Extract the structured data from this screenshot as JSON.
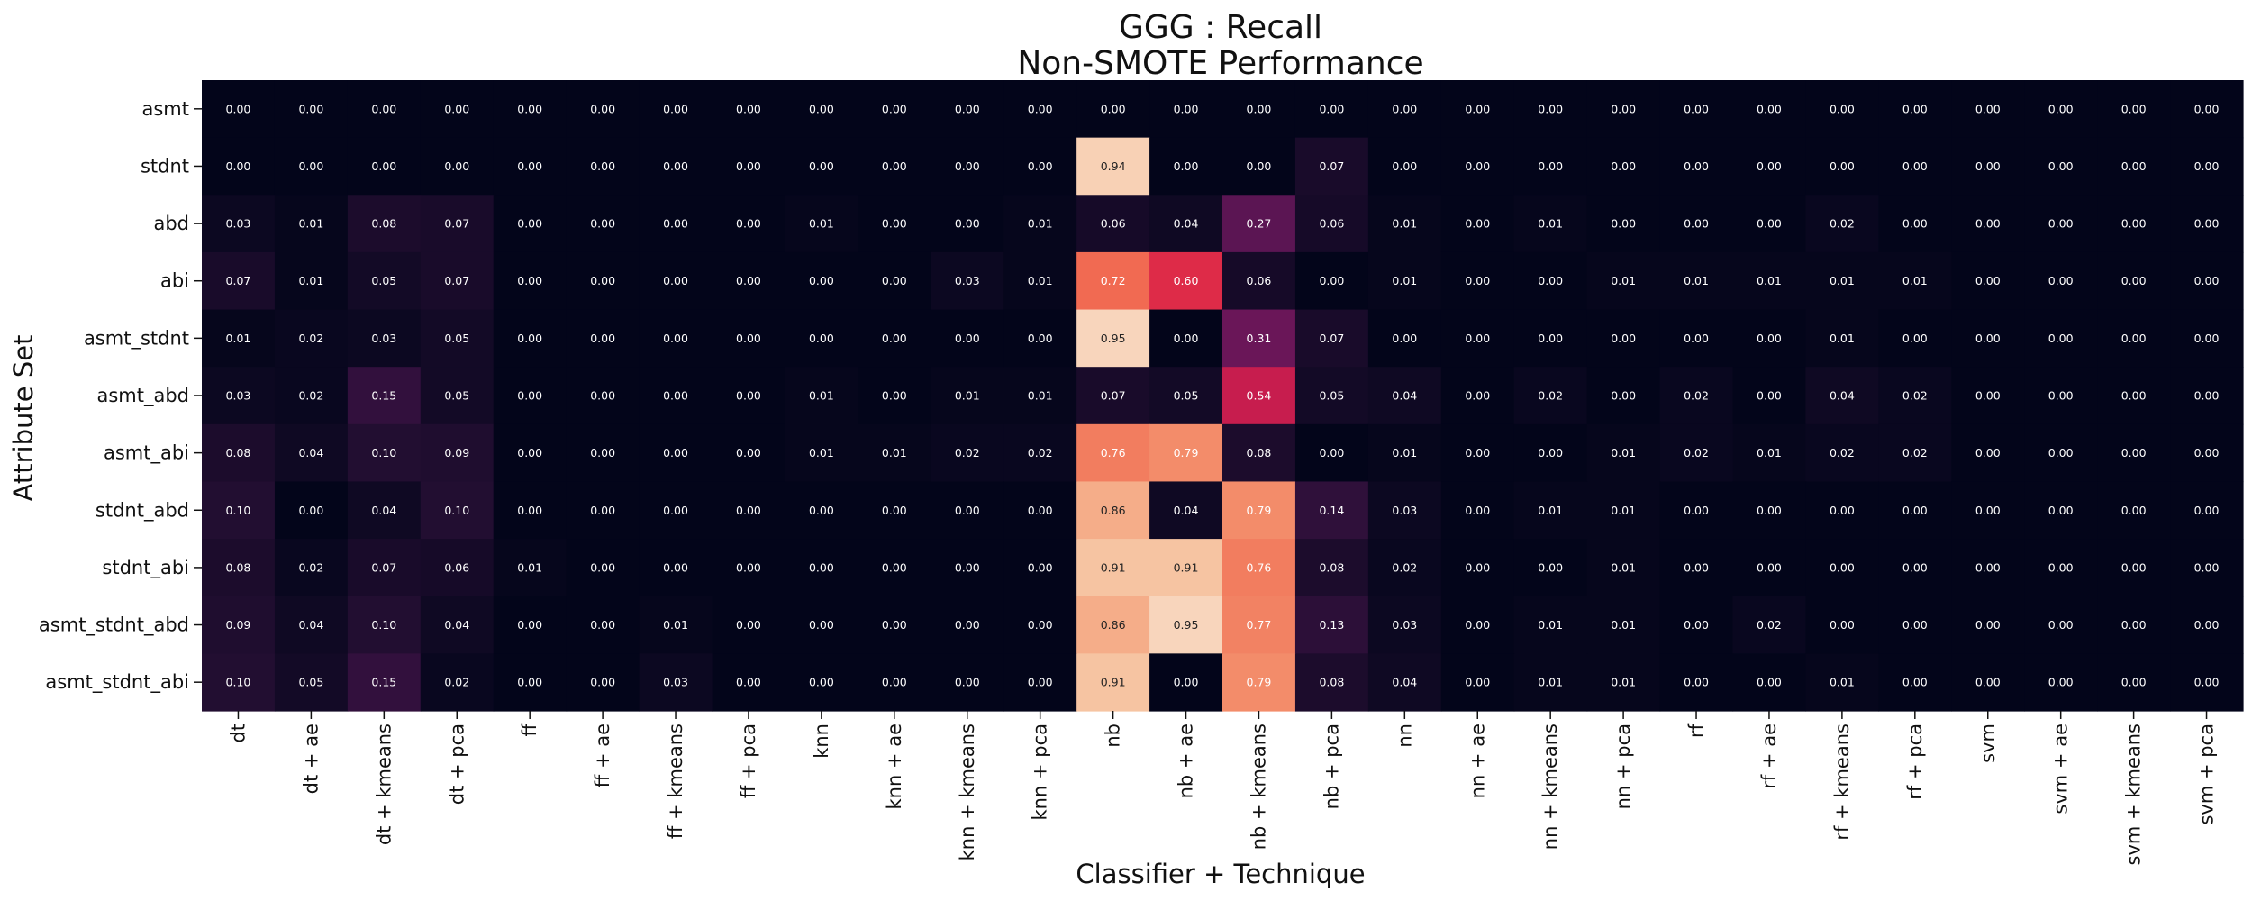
{
  "chart_data": {
    "type": "heatmap",
    "title": "GGG : Recall",
    "subtitle": "Non-SMOTE Performance",
    "xlabel": "Classifier + Technique",
    "ylabel": "Attribute Set",
    "color_scale": "rocket",
    "value_range": [
      0,
      1
    ],
    "x": [
      "dt",
      "dt + ae",
      "dt + kmeans",
      "dt + pca",
      "ff",
      "ff + ae",
      "ff + kmeans",
      "ff + pca",
      "knn",
      "knn + ae",
      "knn + kmeans",
      "knn + pca",
      "nb",
      "nb + ae",
      "nb + kmeans",
      "nb + pca",
      "nn",
      "nn + ae",
      "nn + kmeans",
      "nn + pca",
      "rf",
      "rf + ae",
      "rf + kmeans",
      "rf + pca",
      "svm",
      "svm + ae",
      "svm + kmeans",
      "svm + pca"
    ],
    "y": [
      "asmt",
      "stdnt",
      "abd",
      "abi",
      "asmt_stdnt",
      "asmt_abd",
      "asmt_abi",
      "stdnt_abd",
      "stdnt_abi",
      "asmt_stdnt_abd",
      "asmt_stdnt_abi"
    ],
    "values": [
      [
        0.0,
        0.0,
        0.0,
        0.0,
        0.0,
        0.0,
        0.0,
        0.0,
        0.0,
        0.0,
        0.0,
        0.0,
        0.0,
        0.0,
        0.0,
        0.0,
        0.0,
        0.0,
        0.0,
        0.0,
        0.0,
        0.0,
        0.0,
        0.0,
        0.0,
        0.0,
        0.0,
        0.0
      ],
      [
        0.0,
        0.0,
        0.0,
        0.0,
        0.0,
        0.0,
        0.0,
        0.0,
        0.0,
        0.0,
        0.0,
        0.0,
        0.94,
        0.0,
        0.0,
        0.07,
        0.0,
        0.0,
        0.0,
        0.0,
        0.0,
        0.0,
        0.0,
        0.0,
        0.0,
        0.0,
        0.0,
        0.0
      ],
      [
        0.03,
        0.01,
        0.08,
        0.07,
        0.0,
        0.0,
        0.0,
        0.0,
        0.01,
        0.0,
        0.0,
        0.01,
        0.06,
        0.04,
        0.27,
        0.06,
        0.01,
        0.0,
        0.01,
        0.0,
        0.0,
        0.0,
        0.02,
        0.0,
        0.0,
        0.0,
        0.0,
        0.0
      ],
      [
        0.07,
        0.01,
        0.05,
        0.07,
        0.0,
        0.0,
        0.0,
        0.0,
        0.0,
        0.0,
        0.03,
        0.01,
        0.72,
        0.6,
        0.06,
        0.0,
        0.01,
        0.0,
        0.0,
        0.01,
        0.01,
        0.01,
        0.01,
        0.01,
        0.0,
        0.0,
        0.0,
        0.0
      ],
      [
        0.01,
        0.02,
        0.03,
        0.05,
        0.0,
        0.0,
        0.0,
        0.0,
        0.0,
        0.0,
        0.0,
        0.0,
        0.95,
        0.0,
        0.31,
        0.07,
        0.0,
        0.0,
        0.0,
        0.0,
        0.0,
        0.0,
        0.01,
        0.0,
        0.0,
        0.0,
        0.0,
        0.0
      ],
      [
        0.03,
        0.02,
        0.15,
        0.05,
        0.0,
        0.0,
        0.0,
        0.0,
        0.01,
        0.0,
        0.01,
        0.01,
        0.07,
        0.05,
        0.54,
        0.05,
        0.04,
        0.0,
        0.02,
        0.0,
        0.02,
        0.0,
        0.04,
        0.02,
        0.0,
        0.0,
        0.0,
        0.0
      ],
      [
        0.08,
        0.04,
        0.1,
        0.09,
        0.0,
        0.0,
        0.0,
        0.0,
        0.01,
        0.01,
        0.02,
        0.02,
        0.76,
        0.79,
        0.08,
        0.0,
        0.01,
        0.0,
        0.0,
        0.01,
        0.02,
        0.01,
        0.02,
        0.02,
        0.0,
        0.0,
        0.0,
        0.0
      ],
      [
        0.1,
        0.0,
        0.04,
        0.1,
        0.0,
        0.0,
        0.0,
        0.0,
        0.0,
        0.0,
        0.0,
        0.0,
        0.86,
        0.04,
        0.79,
        0.14,
        0.03,
        0.0,
        0.01,
        0.01,
        0.0,
        0.0,
        0.0,
        0.0,
        0.0,
        0.0,
        0.0,
        0.0
      ],
      [
        0.08,
        0.02,
        0.07,
        0.06,
        0.01,
        0.0,
        0.0,
        0.0,
        0.0,
        0.0,
        0.0,
        0.0,
        0.91,
        0.91,
        0.76,
        0.08,
        0.02,
        0.0,
        0.0,
        0.01,
        0.0,
        0.0,
        0.0,
        0.0,
        0.0,
        0.0,
        0.0,
        0.0
      ],
      [
        0.09,
        0.04,
        0.1,
        0.04,
        0.0,
        0.0,
        0.01,
        0.0,
        0.0,
        0.0,
        0.0,
        0.0,
        0.86,
        0.95,
        0.77,
        0.13,
        0.03,
        0.0,
        0.01,
        0.01,
        0.0,
        0.02,
        0.0,
        0.0,
        0.0,
        0.0,
        0.0,
        0.0
      ],
      [
        0.1,
        0.05,
        0.15,
        0.02,
        0.0,
        0.0,
        0.03,
        0.0,
        0.0,
        0.0,
        0.0,
        0.0,
        0.91,
        0.0,
        0.79,
        0.08,
        0.04,
        0.0,
        0.01,
        0.01,
        0.0,
        0.0,
        0.01,
        0.0,
        0.0,
        0.0,
        0.0,
        0.0
      ]
    ],
    "grid": false,
    "legend": "none"
  }
}
